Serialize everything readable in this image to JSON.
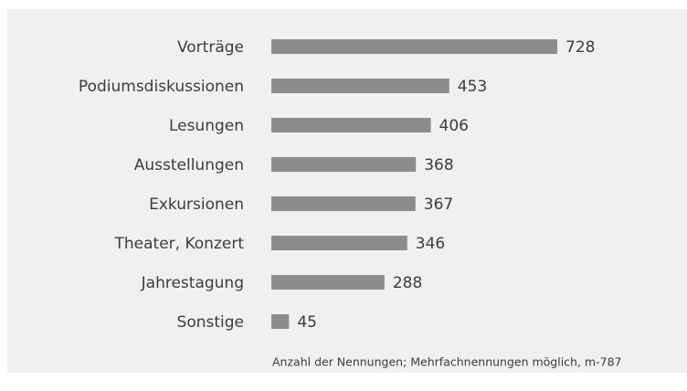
{
  "chart_data": {
    "type": "bar",
    "orientation": "horizontal",
    "categories": [
      "Vorträge",
      "Podiumsdiskussionen",
      "Lesungen",
      "Ausstellungen",
      "Exkursionen",
      "Theater, Konzert",
      "Jahrestagung",
      "Sonstige"
    ],
    "values": [
      728,
      453,
      406,
      368,
      367,
      346,
      288,
      45
    ],
    "color": "#8c8c8c",
    "note": "Anzahl der Nennungen; Mehrfachnennungen möglich, m-787"
  }
}
